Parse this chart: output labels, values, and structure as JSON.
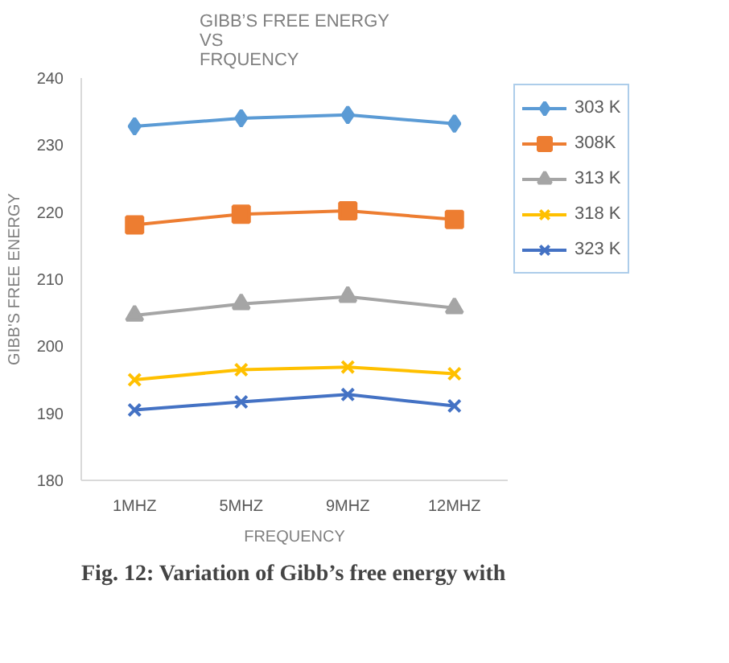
{
  "chart_data": {
    "type": "line",
    "title": "GIBB’S FREE ENERGY\nVS\nFRQUENCY",
    "xlabel": "FREQUENCY",
    "ylabel": "GIBB'S FREE ENERGY",
    "categories": [
      "1MHZ",
      "5MHZ",
      "9MHZ",
      "12MHZ"
    ],
    "series": [
      {
        "name": "303 K",
        "color": "#5b9bd5",
        "marker": "diamond",
        "values": [
          232.8,
          234.0,
          234.5,
          233.2
        ]
      },
      {
        "name": "308K",
        "color": "#ed7d31",
        "marker": "square",
        "values": [
          218.1,
          219.7,
          220.2,
          218.9
        ]
      },
      {
        "name": "313 K",
        "color": "#a5a5a5",
        "marker": "triangle",
        "values": [
          204.6,
          206.3,
          207.4,
          205.7
        ]
      },
      {
        "name": "318 K",
        "color": "#ffc000",
        "marker": "cross",
        "values": [
          195.0,
          196.5,
          196.9,
          195.9
        ]
      },
      {
        "name": "323 K",
        "color": "#4472c4",
        "marker": "cross",
        "values": [
          190.5,
          191.7,
          192.8,
          191.1
        ]
      }
    ],
    "ylim": [
      180,
      240
    ],
    "yticks": [
      180,
      190,
      200,
      210,
      220,
      230,
      240
    ],
    "grid": false,
    "legend": "right",
    "annotations": [
      "Fig. 12: Variation of Gibb’s free energy with"
    ]
  }
}
